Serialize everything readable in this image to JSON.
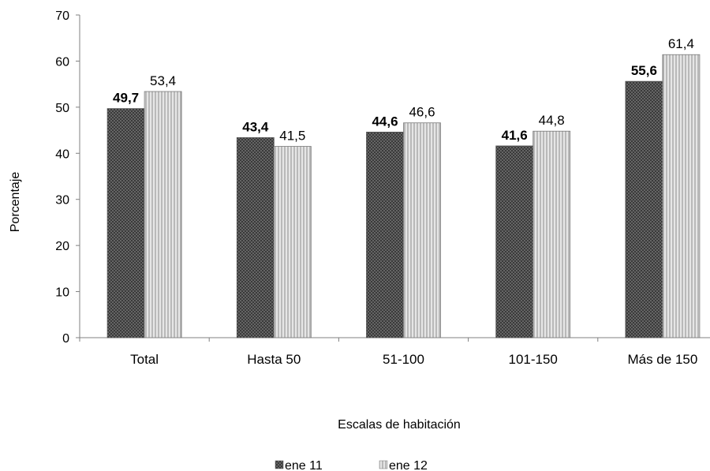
{
  "chart_data": {
    "type": "bar",
    "title": "",
    "xlabel": "Escalas de habitación",
    "ylabel": "Porcentaje",
    "ylim": [
      0,
      70
    ],
    "yticks": [
      "0",
      "10",
      "20",
      "30",
      "40",
      "50",
      "60",
      "70"
    ],
    "categories": [
      "Total",
      "Hasta 50",
      "51-100",
      "101-150",
      "Más de 150"
    ],
    "series": [
      {
        "name": "ene 11",
        "values": [
          49.7,
          43.4,
          44.6,
          41.6,
          55.6
        ],
        "labels": [
          "49,7",
          "43,4",
          "44,6",
          "41,6",
          "55,6"
        ],
        "pattern": "dark-dotted"
      },
      {
        "name": "ene 12",
        "values": [
          53.4,
          41.5,
          46.6,
          44.8,
          61.4
        ],
        "labels": [
          "53,4",
          "41,5",
          "46,6",
          "44,8",
          "61,4"
        ],
        "pattern": "light-vertical-stripes"
      }
    ],
    "grid": false,
    "legend_position": "bottom-center"
  }
}
